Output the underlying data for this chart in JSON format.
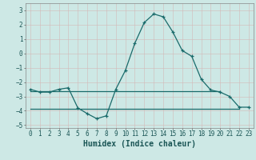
{
  "title": "",
  "xlabel": "Humidex (Indice chaleur)",
  "ylabel": "",
  "bg_color": "#cde8e5",
  "grid_color": "#b8d4d0",
  "line_color": "#1a6b6b",
  "ylim": [
    -5.2,
    3.5
  ],
  "xlim": [
    -0.5,
    23.5
  ],
  "yticks": [
    -5,
    -4,
    -3,
    -2,
    -1,
    0,
    1,
    2,
    3
  ],
  "xticks": [
    0,
    1,
    2,
    3,
    4,
    5,
    6,
    7,
    8,
    9,
    10,
    11,
    12,
    13,
    14,
    15,
    16,
    17,
    18,
    19,
    20,
    21,
    22,
    23
  ],
  "curve1_x": [
    0,
    1,
    2,
    3,
    4,
    5,
    6,
    7,
    8,
    9,
    10,
    11,
    12,
    13,
    14,
    15,
    16,
    17,
    18,
    19,
    20,
    21,
    22,
    23
  ],
  "curve1_y": [
    -2.5,
    -2.7,
    -2.7,
    -2.5,
    -2.4,
    -3.8,
    -4.2,
    -4.55,
    -4.35,
    -2.5,
    -1.2,
    0.7,
    2.15,
    2.75,
    2.55,
    1.5,
    0.2,
    -0.2,
    -1.8,
    -2.55,
    -2.7,
    -3.0,
    -3.75,
    -3.75
  ],
  "hline1_y": -2.65,
  "hline1_x_start": 0,
  "hline1_x_end": 20,
  "hline2_y": -3.85,
  "hline2_x_start": 0,
  "hline2_x_end": 22,
  "font_size_label": 7,
  "font_size_tick": 5.5
}
